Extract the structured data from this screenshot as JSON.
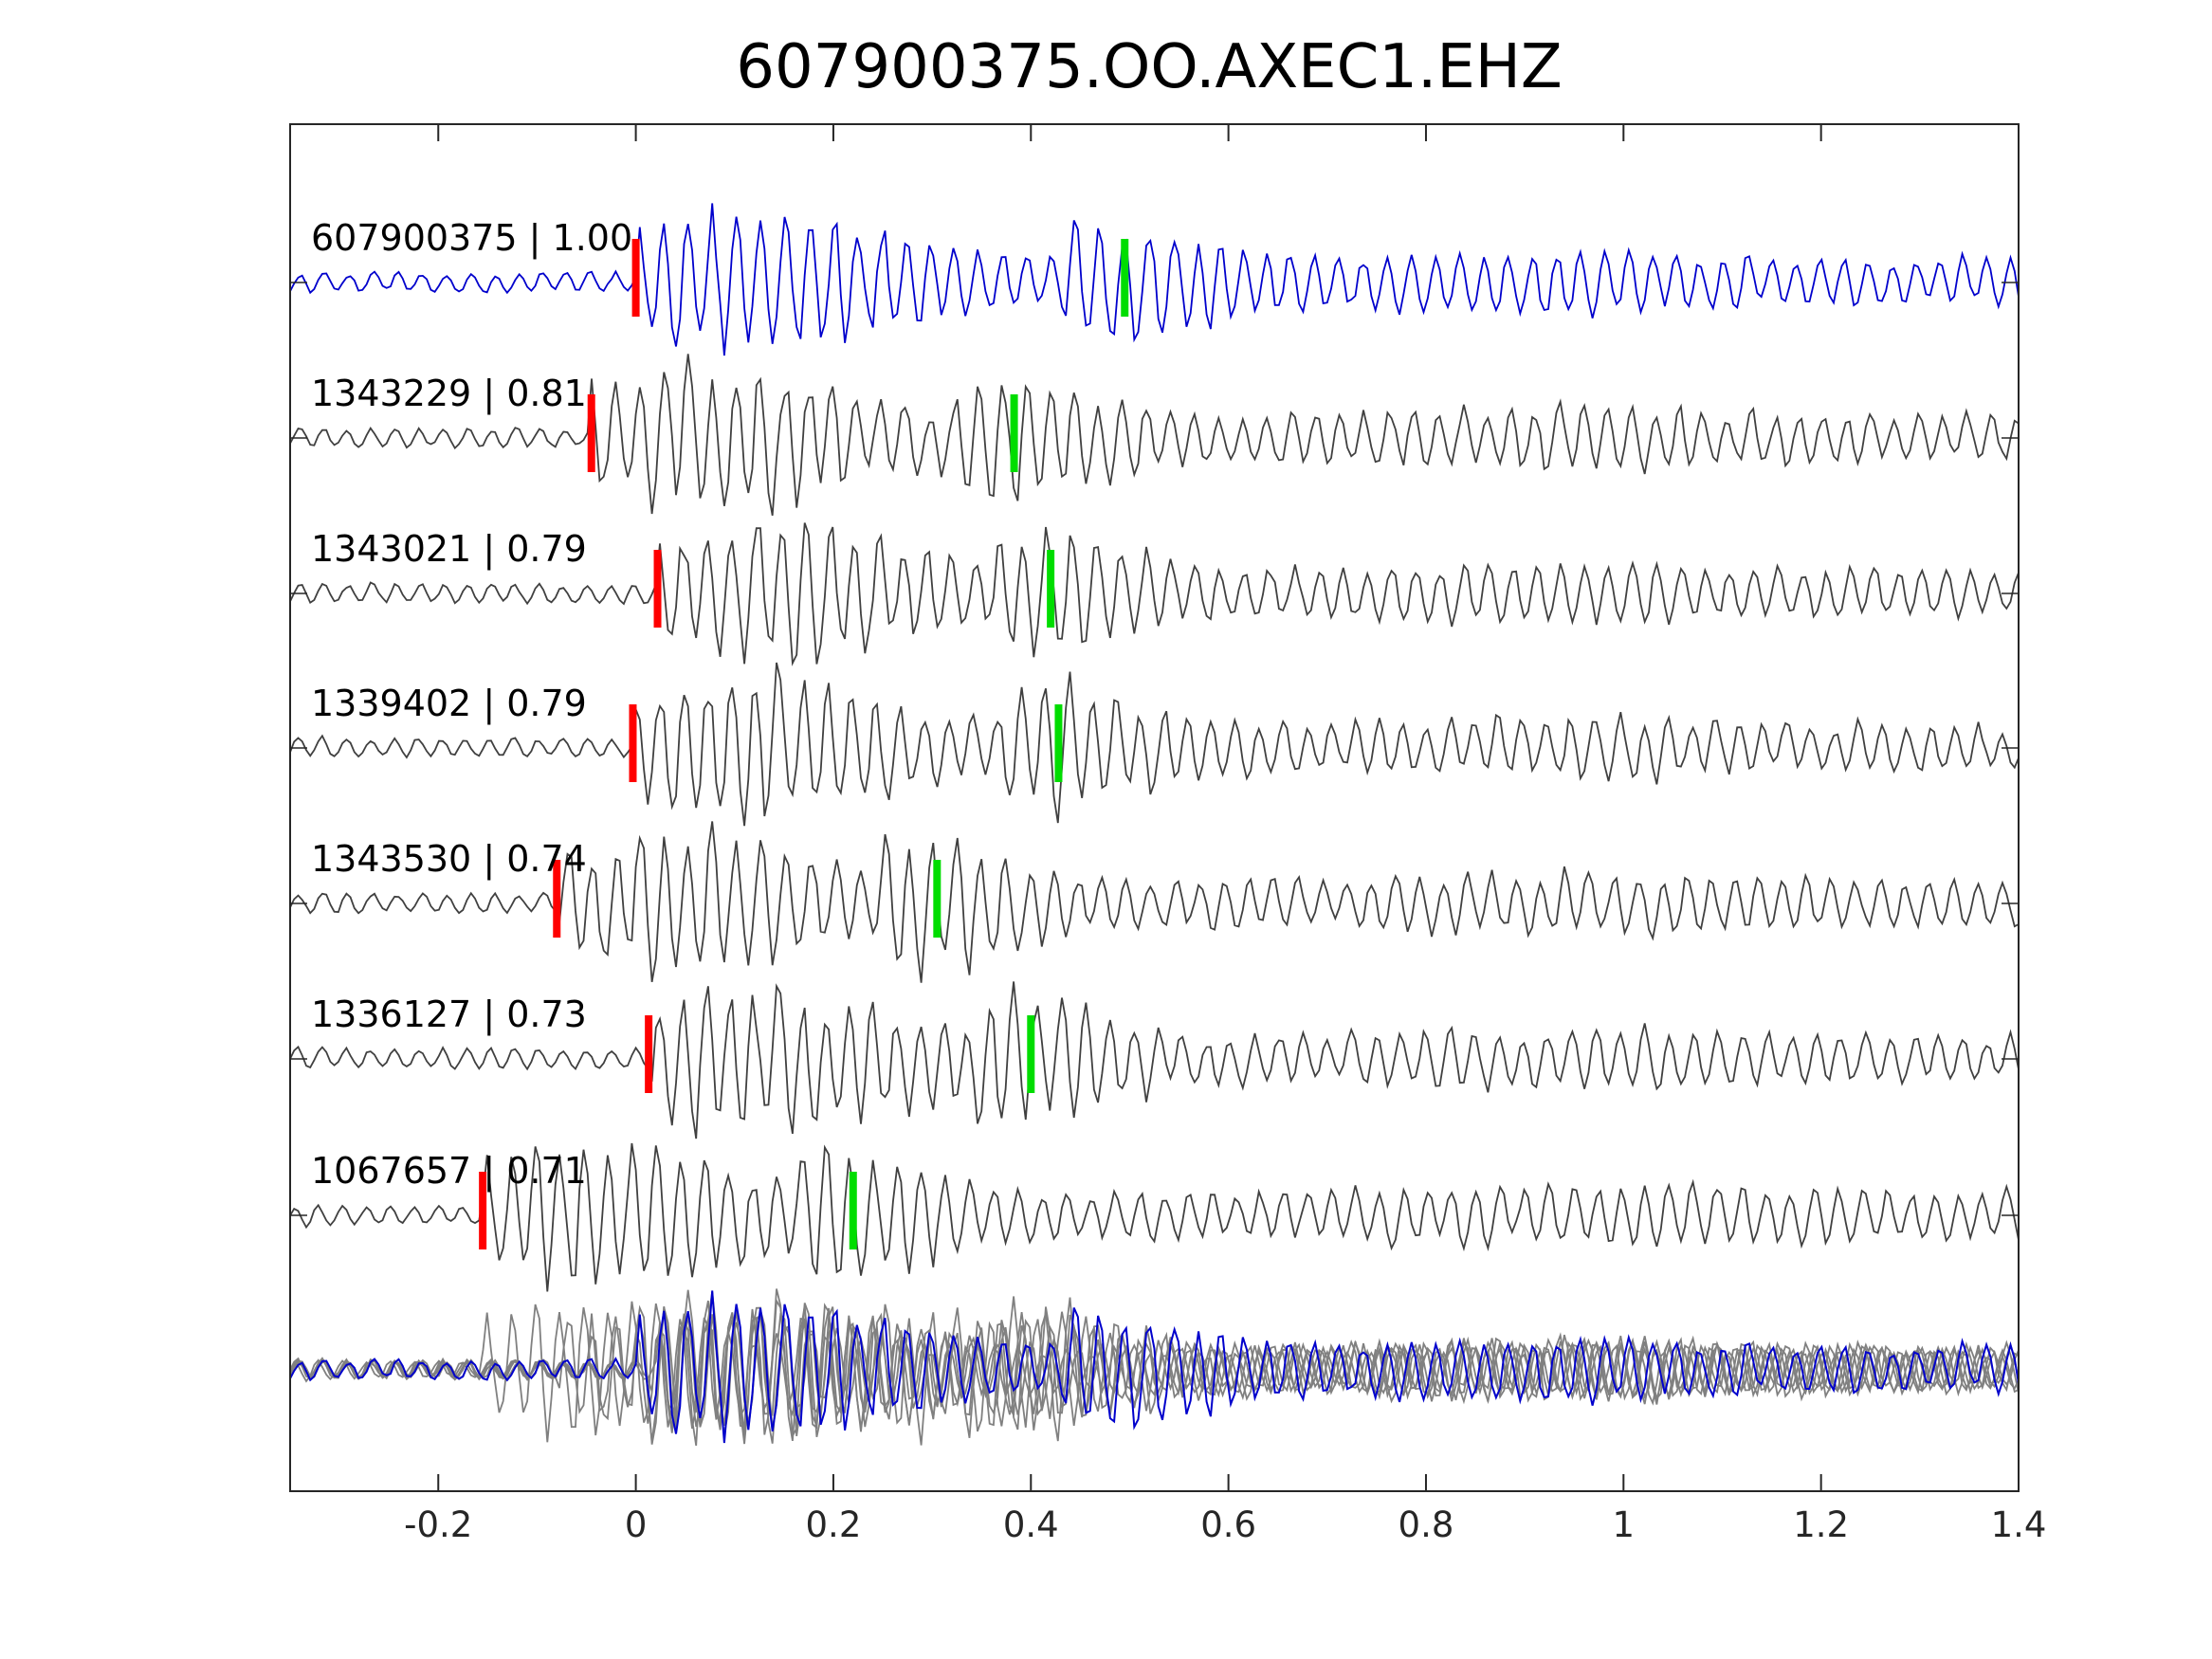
{
  "chart_data": {
    "type": "line",
    "title": "607900375.OO.AXEC1.EHZ",
    "xlabel": "",
    "ylabel": "",
    "xlim": [
      -0.35,
      1.4
    ],
    "x_ticks": [
      -0.2,
      0,
      0.2,
      0.4,
      0.6,
      0.8,
      1,
      1.2,
      1.4
    ],
    "x_tick_labels": [
      "-0.2",
      "0",
      "0.2",
      "0.4",
      "0.6",
      "0.8",
      "1",
      "1.2",
      "1.4"
    ],
    "grid": false,
    "colors": {
      "reference_trace": "#0000cc",
      "trace": "#404040",
      "overlay_trace": "#808080",
      "p_pick": "#ff0000",
      "s_pick": "#00dd00",
      "axes": "#262626"
    },
    "traces": [
      {
        "id": "607900375",
        "cc": "1.00",
        "label": "607900375 | 1.00",
        "p_pick": 0.0,
        "s_pick": 0.495,
        "color": "#0000cc"
      },
      {
        "id": "1343229",
        "cc": "0.81",
        "label": "1343229 | 0.81",
        "p_pick": -0.045,
        "s_pick": 0.383,
        "color": "#404040"
      },
      {
        "id": "1343021",
        "cc": "0.79",
        "label": "1343021 | 0.79",
        "p_pick": 0.022,
        "s_pick": 0.42,
        "color": "#404040"
      },
      {
        "id": "1339402",
        "cc": "0.79",
        "label": "1339402 | 0.79",
        "p_pick": -0.003,
        "s_pick": 0.428,
        "color": "#404040"
      },
      {
        "id": "1343530",
        "cc": "0.74",
        "label": "1343530 | 0.74",
        "p_pick": -0.08,
        "s_pick": 0.305,
        "color": "#404040"
      },
      {
        "id": "1336127",
        "cc": "0.73",
        "label": "1336127 | 0.73",
        "p_pick": 0.013,
        "s_pick": 0.4,
        "color": "#404040"
      },
      {
        "id": "1067657",
        "cc": "0.71",
        "label": "1067657 | 0.71",
        "p_pick": -0.155,
        "s_pick": 0.22,
        "color": "#404040"
      }
    ],
    "overlay": {
      "description_visible": false,
      "reference_id": "607900375"
    }
  }
}
